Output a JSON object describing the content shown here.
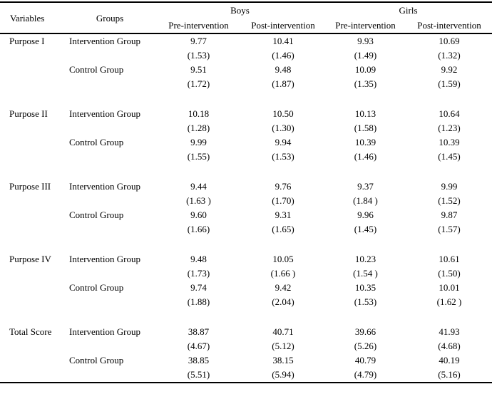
{
  "table": {
    "header": {
      "variables": "Variables",
      "groups": "Groups",
      "group_headers": [
        "Boys",
        "Girls"
      ],
      "sub_headers": [
        "Pre-intervention",
        "Post-intervention",
        "Pre-intervention",
        "Post-intervention"
      ]
    },
    "blocks": [
      {
        "variable": "Purpose I",
        "groups": [
          {
            "label": "Intervention Group",
            "means": [
              "9.77",
              "10.41",
              "9.93",
              "10.69"
            ],
            "sds": [
              "(1.53)",
              "(1.46)",
              "(1.49)",
              "(1.32)"
            ]
          },
          {
            "label": "Control Group",
            "means": [
              "9.51",
              "9.48",
              "10.09",
              "9.92"
            ],
            "sds": [
              "(1.72)",
              "(1.87)",
              "(1.35)",
              "(1.59)"
            ]
          }
        ]
      },
      {
        "variable": "Purpose II",
        "groups": [
          {
            "label": "Intervention Group",
            "means": [
              "10.18",
              "10.50",
              "10.13",
              "10.64"
            ],
            "sds": [
              "(1.28)",
              "(1.30)",
              "(1.58)",
              "(1.23)"
            ]
          },
          {
            "label": "Control Group",
            "means": [
              "9.99",
              "9.94",
              "10.39",
              "10.39"
            ],
            "sds": [
              "(1.55)",
              "(1.53)",
              "(1.46)",
              "(1.45)"
            ]
          }
        ]
      },
      {
        "variable": "Purpose III",
        "groups": [
          {
            "label": "Intervention Group",
            "means": [
              "9.44",
              "9.76",
              "9.37",
              "9.99"
            ],
            "sds": [
              "(1.63 )",
              "(1.70)",
              "(1.84 )",
              "(1.52)"
            ]
          },
          {
            "label": "Control Group",
            "means": [
              "9.60",
              "9.31",
              "9.96",
              "9.87"
            ],
            "sds": [
              "(1.66)",
              "(1.65)",
              "(1.45)",
              "(1.57)"
            ]
          }
        ]
      },
      {
        "variable": "Purpose IV",
        "groups": [
          {
            "label": "Intervention Group",
            "means": [
              "9.48",
              "10.05",
              "10.23",
              "10.61"
            ],
            "sds": [
              "(1.73)",
              "(1.66 )",
              "(1.54 )",
              "(1.50)"
            ]
          },
          {
            "label": "Control Group",
            "means": [
              "9.74",
              "9.42",
              "10.35",
              "10.01"
            ],
            "sds": [
              "(1.88)",
              "(2.04)",
              "(1.53)",
              "(1.62 )"
            ]
          }
        ]
      },
      {
        "variable": "Total Score",
        "groups": [
          {
            "label": "Intervention Group",
            "means": [
              "38.87",
              "40.71",
              "39.66",
              "41.93"
            ],
            "sds": [
              "(4.67)",
              "(5.12)",
              "(5.26)",
              "(4.68)"
            ]
          },
          {
            "label": "Control Group",
            "means": [
              "38.85",
              "38.15",
              "40.79",
              "40.19"
            ],
            "sds": [
              "(5.51)",
              "(5.94)",
              "(4.79)",
              "(5.16)"
            ]
          }
        ]
      }
    ],
    "colors": {
      "border": "#000000",
      "text": "#000000",
      "background": "#ffffff"
    }
  }
}
